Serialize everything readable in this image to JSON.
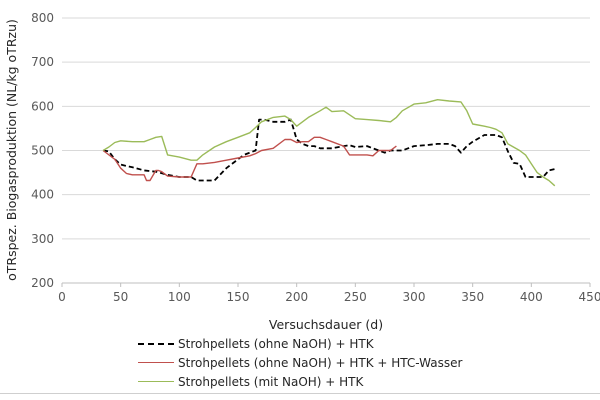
{
  "chart_data": {
    "type": "line",
    "title": "",
    "xlabel": "Versuchsdauer (d)",
    "ylabel": "oTRspez. Biogasproduktion (NL/kg oTRzu)",
    "xlim": [
      0,
      450
    ],
    "ylim": [
      200,
      800
    ],
    "xticks": [
      0,
      50,
      100,
      150,
      200,
      250,
      300,
      350,
      400,
      450
    ],
    "yticks": [
      200,
      300,
      400,
      500,
      600,
      700,
      800
    ],
    "grid": "horizontal",
    "legend_position": "bottom",
    "series": [
      {
        "name": "Strohpellets (ohne NaOH) + HTK",
        "color": "#000000",
        "style": "dashed",
        "x": [
          35,
          40,
          45,
          50,
          55,
          60,
          70,
          80,
          90,
          100,
          110,
          115,
          120,
          130,
          140,
          150,
          155,
          160,
          165,
          168,
          172,
          180,
          190,
          195,
          200,
          205,
          210,
          215,
          220,
          230,
          240,
          245,
          250,
          260,
          265,
          270,
          275,
          280,
          290,
          295,
          300,
          310,
          320,
          330,
          335,
          340,
          345,
          350,
          360,
          370,
          375,
          380,
          385,
          390,
          395,
          400,
          410,
          415,
          420
        ],
        "values": [
          500,
          498,
          480,
          468,
          465,
          462,
          455,
          452,
          445,
          440,
          440,
          432,
          432,
          432,
          460,
          480,
          490,
          495,
          500,
          570,
          570,
          565,
          565,
          570,
          525,
          515,
          510,
          510,
          505,
          505,
          510,
          512,
          508,
          510,
          505,
          500,
          495,
          500,
          500,
          505,
          510,
          512,
          515,
          515,
          510,
          495,
          510,
          520,
          535,
          535,
          530,
          498,
          472,
          470,
          440,
          440,
          440,
          455,
          458
        ]
      },
      {
        "name": "Strohpellets (ohne NaOH) + HTK + HTC-Wasser",
        "color": "#c0504d",
        "style": "solid",
        "x": [
          35,
          45,
          50,
          55,
          60,
          65,
          70,
          72,
          75,
          80,
          82,
          85,
          90,
          100,
          110,
          115,
          120,
          130,
          140,
          150,
          160,
          165,
          170,
          180,
          190,
          195,
          200,
          205,
          210,
          215,
          220,
          225,
          230,
          240,
          245,
          250,
          260,
          265,
          270,
          275,
          280,
          285
        ],
        "values": [
          500,
          480,
          460,
          448,
          445,
          445,
          445,
          432,
          432,
          455,
          455,
          452,
          442,
          440,
          440,
          470,
          470,
          473,
          478,
          483,
          488,
          493,
          500,
          505,
          525,
          525,
          518,
          520,
          520,
          530,
          530,
          525,
          520,
          510,
          490,
          490,
          490,
          488,
          500,
          500,
          500,
          510
        ]
      },
      {
        "name": "Strohpellets (mit NaOH) + HTK",
        "color": "#9bbb59",
        "style": "solid",
        "x": [
          35,
          40,
          45,
          50,
          60,
          70,
          75,
          80,
          85,
          90,
          100,
          110,
          115,
          120,
          130,
          140,
          150,
          160,
          165,
          170,
          180,
          190,
          195,
          200,
          210,
          220,
          225,
          230,
          240,
          250,
          260,
          270,
          280,
          285,
          290,
          300,
          310,
          320,
          330,
          340,
          345,
          350,
          360,
          365,
          370,
          375,
          380,
          390,
          395,
          400,
          405,
          410,
          415,
          420
        ],
        "values": [
          500,
          508,
          518,
          522,
          520,
          520,
          525,
          530,
          532,
          490,
          485,
          478,
          478,
          490,
          508,
          520,
          530,
          540,
          552,
          565,
          575,
          578,
          570,
          555,
          575,
          590,
          598,
          588,
          590,
          572,
          570,
          568,
          565,
          575,
          590,
          605,
          608,
          615,
          612,
          610,
          590,
          560,
          555,
          552,
          548,
          540,
          515,
          500,
          490,
          470,
          450,
          440,
          432,
          420
        ]
      }
    ]
  }
}
